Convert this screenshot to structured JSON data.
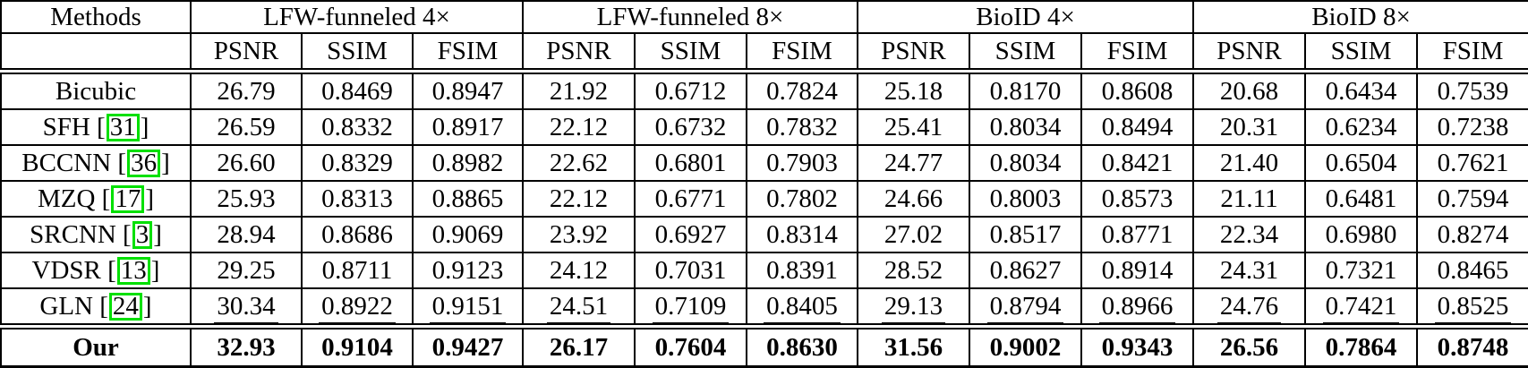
{
  "table": {
    "header": {
      "methods_label": "Methods",
      "groups": [
        {
          "label": "LFW-funneled 4×"
        },
        {
          "label": "LFW-funneled 8×"
        },
        {
          "label": "BioID 4×"
        },
        {
          "label": "BioID 8×"
        }
      ],
      "metrics": [
        "PSNR",
        "SSIM",
        "FSIM"
      ]
    },
    "rows": [
      {
        "method": "Bicubic",
        "citation": null,
        "style": "normal",
        "values": [
          "26.79",
          "0.8469",
          "0.8947",
          "21.92",
          "0.6712",
          "0.7824",
          "25.18",
          "0.8170",
          "0.8608",
          "20.68",
          "0.6434",
          "0.7539"
        ]
      },
      {
        "method": "SFH",
        "citation": "31",
        "style": "normal",
        "values": [
          "26.59",
          "0.8332",
          "0.8917",
          "22.12",
          "0.6732",
          "0.7832",
          "25.41",
          "0.8034",
          "0.8494",
          "20.31",
          "0.6234",
          "0.7238"
        ]
      },
      {
        "method": "BCCNN",
        "citation": "36",
        "style": "normal",
        "values": [
          "26.60",
          "0.8329",
          "0.8982",
          "22.62",
          "0.6801",
          "0.7903",
          "24.77",
          "0.8034",
          "0.8421",
          "21.40",
          "0.6504",
          "0.7621"
        ]
      },
      {
        "method": "MZQ",
        "citation": "17",
        "style": "normal",
        "values": [
          "25.93",
          "0.8313",
          "0.8865",
          "22.12",
          "0.6771",
          "0.7802",
          "24.66",
          "0.8003",
          "0.8573",
          "21.11",
          "0.6481",
          "0.7594"
        ]
      },
      {
        "method": "SRCNN",
        "citation": "3",
        "style": "normal",
        "values": [
          "28.94",
          "0.8686",
          "0.9069",
          "23.92",
          "0.6927",
          "0.8314",
          "27.02",
          "0.8517",
          "0.8771",
          "22.34",
          "0.6980",
          "0.8274"
        ]
      },
      {
        "method": "VDSR",
        "citation": "13",
        "style": "normal",
        "values": [
          "29.25",
          "0.8711",
          "0.9123",
          "24.12",
          "0.7031",
          "0.8391",
          "28.52",
          "0.8627",
          "0.8914",
          "24.31",
          "0.7321",
          "0.8465"
        ]
      },
      {
        "method": "GLN",
        "citation": "24",
        "style": "underline",
        "values": [
          "30.34",
          "0.8922",
          "0.9151",
          "24.51",
          "0.7109",
          "0.8405",
          "29.13",
          "0.8794",
          "0.8966",
          "24.76",
          "0.7421",
          "0.8525"
        ]
      },
      {
        "method": "Our",
        "citation": null,
        "style": "bold",
        "values": [
          "32.93",
          "0.9104",
          "0.9427",
          "26.17",
          "0.7604",
          "0.8630",
          "31.56",
          "0.9002",
          "0.9343",
          "26.56",
          "0.7864",
          "0.8748"
        ]
      }
    ]
  },
  "colors": {
    "citation_box": "#00e000",
    "grid": "#000000",
    "background": "#ffffff"
  }
}
